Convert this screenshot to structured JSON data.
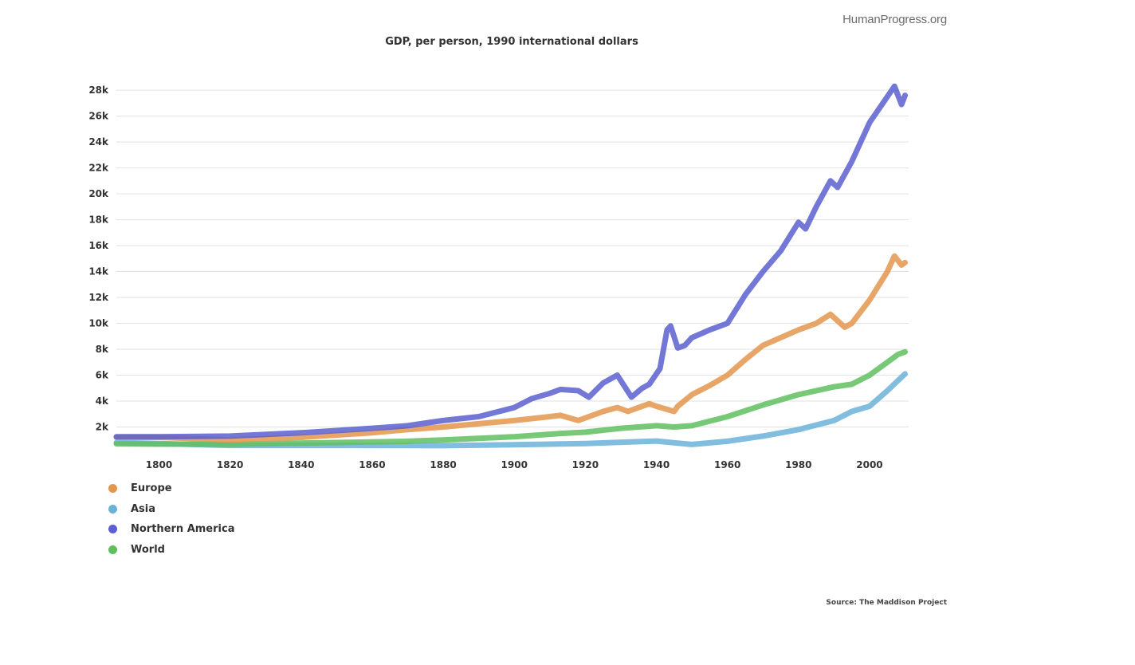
{
  "brand": "HumanProgress.org",
  "source": "Source: The Maddison Project",
  "chart_data": {
    "type": "line",
    "title": "GDP, per person, 1990 international dollars",
    "xlabel": "",
    "ylabel": "",
    "xlim": [
      1788,
      2011
    ],
    "ylim": [
      0,
      28500
    ],
    "grid": true,
    "legend_position": "bottom-left",
    "x_ticks": [
      1800,
      1820,
      1840,
      1860,
      1880,
      1900,
      1920,
      1940,
      1960,
      1980,
      2000
    ],
    "x_tick_labels": [
      "1800",
      "1820",
      "1840",
      "1860",
      "1880",
      "1900",
      "1920",
      "1940",
      "1960",
      "1980",
      "2000"
    ],
    "y_ticks": [
      2000,
      4000,
      6000,
      8000,
      10000,
      12000,
      14000,
      16000,
      18000,
      20000,
      22000,
      24000,
      26000,
      28000
    ],
    "y_tick_labels": [
      "2k",
      "4k",
      "6k",
      "8k",
      "10k",
      "12k",
      "14k",
      "16k",
      "18k",
      "20k",
      "22k",
      "24k",
      "26k",
      "28k"
    ],
    "series": [
      {
        "name": "Europe",
        "color": "#e3964e",
        "x": [
          1788,
          1800,
          1820,
          1840,
          1860,
          1870,
          1880,
          1890,
          1900,
          1910,
          1913,
          1918,
          1920,
          1925,
          1929,
          1932,
          1935,
          1938,
          1940,
          1945,
          1946,
          1950,
          1955,
          1960,
          1965,
          1970,
          1975,
          1980,
          1985,
          1989,
          1993,
          1995,
          2000,
          2005,
          2007,
          2009,
          2010
        ],
        "y": [
          1200,
          1200,
          1000,
          1200,
          1550,
          1800,
          2000,
          2250,
          2500,
          2800,
          2900,
          2500,
          2700,
          3200,
          3500,
          3200,
          3500,
          3800,
          3600,
          3200,
          3600,
          4500,
          5200,
          6000,
          7200,
          8300,
          8900,
          9500,
          10000,
          10700,
          9700,
          10000,
          11800,
          14000,
          15200,
          14500,
          14700
        ]
      },
      {
        "name": "Asia",
        "color": "#6ab2d8",
        "x": [
          1788,
          1800,
          1820,
          1850,
          1880,
          1900,
          1920,
          1940,
          1945,
          1950,
          1960,
          1970,
          1980,
          1990,
          1995,
          2000,
          2005,
          2010
        ],
        "y": [
          800,
          720,
          580,
          580,
          560,
          630,
          720,
          920,
          780,
          650,
          900,
          1300,
          1800,
          2500,
          3200,
          3600,
          4800,
          6100
        ]
      },
      {
        "name": "Northern America",
        "color": "#5b5fcf",
        "x": [
          1788,
          1800,
          1820,
          1840,
          1860,
          1870,
          1880,
          1890,
          1900,
          1905,
          1910,
          1913,
          1918,
          1921,
          1925,
          1929,
          1933,
          1936,
          1938,
          1941,
          1943,
          1944,
          1946,
          1948,
          1950,
          1955,
          1960,
          1965,
          1970,
          1975,
          1980,
          1982,
          1985,
          1989,
          1991,
          1995,
          2000,
          2005,
          2007,
          2009,
          2010
        ],
        "y": [
          1250,
          1250,
          1300,
          1550,
          1900,
          2100,
          2500,
          2800,
          3500,
          4200,
          4600,
          4900,
          4800,
          4300,
          5400,
          6000,
          4300,
          5000,
          5300,
          6500,
          9500,
          9800,
          8100,
          8300,
          8900,
          9500,
          10000,
          12200,
          14000,
          15600,
          17800,
          17300,
          19000,
          21000,
          20500,
          22500,
          25500,
          27500,
          28300,
          26900,
          27600
        ]
      },
      {
        "name": "World",
        "color": "#5fbf5f",
        "x": [
          1788,
          1800,
          1820,
          1850,
          1870,
          1880,
          1900,
          1913,
          1920,
          1930,
          1940,
          1945,
          1950,
          1960,
          1970,
          1980,
          1990,
          1995,
          2000,
          2005,
          2008,
          2010
        ],
        "y": [
          700,
          680,
          670,
          800,
          900,
          1000,
          1250,
          1500,
          1600,
          1900,
          2100,
          2000,
          2100,
          2800,
          3700,
          4500,
          5100,
          5300,
          6000,
          7000,
          7600,
          7800
        ]
      }
    ]
  }
}
